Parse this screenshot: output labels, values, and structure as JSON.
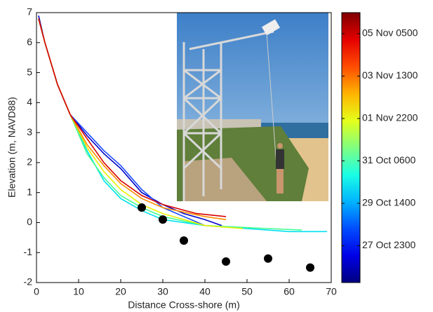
{
  "chart_data": {
    "type": "line",
    "xlabel": "Distance Cross-shore  (m)",
    "ylabel": "Elevation (m, NAVD88)",
    "xlim": [
      0,
      70
    ],
    "ylim": [
      -2,
      7
    ],
    "xticks": [
      0,
      10,
      20,
      30,
      40,
      50,
      60,
      70
    ],
    "yticks": [
      -2,
      -1,
      0,
      1,
      2,
      3,
      4,
      5,
      6,
      7
    ],
    "series": [
      {
        "color": "#0000c8",
        "x": [
          0.5,
          2,
          5,
          8,
          12,
          16,
          20,
          25,
          30,
          35,
          40,
          44
        ],
        "values": [
          6.9,
          6.0,
          4.6,
          3.6,
          2.9,
          2.3,
          1.8,
          1.0,
          0.6,
          0.3,
          0.1,
          -0.1
        ]
      },
      {
        "color": "#1a4cff",
        "x": [
          0.5,
          2,
          5,
          8,
          12,
          16,
          20,
          25,
          30,
          35,
          40
        ],
        "values": [
          6.8,
          6.0,
          4.6,
          3.6,
          3.0,
          2.4,
          1.9,
          1.1,
          0.5,
          0.2,
          -0.1
        ]
      },
      {
        "color": "#00e0f0",
        "x": [
          0.5,
          2,
          5,
          8,
          12,
          16,
          20,
          25,
          30,
          40,
          50,
          60,
          69
        ],
        "values": [
          6.8,
          6.0,
          4.6,
          3.6,
          2.4,
          1.4,
          0.8,
          0.4,
          0.1,
          -0.1,
          -0.2,
          -0.3,
          -0.3
        ]
      },
      {
        "color": "#40ff90",
        "x": [
          0.5,
          2,
          5,
          8,
          12,
          16,
          20,
          25,
          30,
          40,
          55,
          63
        ],
        "values": [
          6.8,
          6.0,
          4.6,
          3.6,
          2.3,
          1.5,
          0.9,
          0.5,
          0.2,
          -0.1,
          -0.2,
          -0.25
        ]
      },
      {
        "color": "#e8f000",
        "x": [
          0.5,
          2,
          5,
          8,
          12,
          16,
          20,
          25,
          30,
          40,
          49
        ],
        "values": [
          6.8,
          6.0,
          4.6,
          3.6,
          2.5,
          1.7,
          1.1,
          0.6,
          0.3,
          -0.1,
          -0.2
        ]
      },
      {
        "color": "#ff8c00",
        "x": [
          0.5,
          2,
          5,
          8,
          12,
          16,
          20,
          25,
          30,
          40,
          45
        ],
        "values": [
          6.8,
          6.0,
          4.6,
          3.6,
          2.6,
          1.9,
          1.3,
          0.8,
          0.5,
          0.2,
          0.1
        ]
      },
      {
        "color": "#d80000",
        "x": [
          0.5,
          2,
          5,
          8,
          12,
          16,
          20,
          25,
          30,
          38,
          45
        ],
        "values": [
          6.8,
          6.0,
          4.6,
          3.6,
          2.8,
          2.0,
          1.4,
          0.9,
          0.6,
          0.3,
          0.2
        ]
      }
    ],
    "markers": {
      "color": "#000000",
      "x": [
        25,
        30,
        35,
        45,
        55,
        65
      ],
      "values": [
        0.5,
        0.1,
        -0.6,
        -1.3,
        -1.2,
        -1.5
      ]
    },
    "colorbar": {
      "colormap": "jet",
      "ticks": [
        "05 Nov 0500",
        "03 Nov 1300",
        "01 Nov 2200",
        "31 Oct 0600",
        "29 Oct 1400",
        "27 Oct 2300"
      ]
    }
  }
}
